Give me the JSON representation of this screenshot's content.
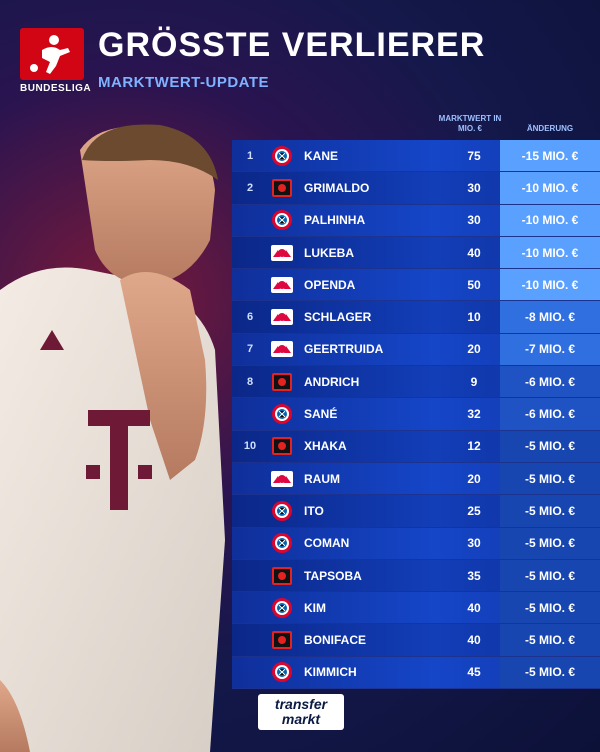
{
  "header": {
    "league_logo_text": "BUNDESLIGA",
    "title": "GRÖSSTE VERLIERER",
    "subtitle": "MARKTWERT-UPDATE"
  },
  "columns": {
    "marktwert": "MARKTWERT IN MIO. €",
    "aenderung": "ÄNDERUNG"
  },
  "rows": [
    {
      "rank": "1",
      "club": "bayern",
      "name": "KANE",
      "mw": "75",
      "chg": "-15 MIO. €"
    },
    {
      "rank": "2",
      "club": "leverkusen",
      "name": "GRIMALDO",
      "mw": "30",
      "chg": "-10 MIO. €"
    },
    {
      "rank": "",
      "club": "bayern",
      "name": "PALHINHA",
      "mw": "30",
      "chg": "-10 MIO. €"
    },
    {
      "rank": "",
      "club": "leipzig",
      "name": "LUKEBA",
      "mw": "40",
      "chg": "-10 MIO. €"
    },
    {
      "rank": "",
      "club": "leipzig",
      "name": "OPENDA",
      "mw": "50",
      "chg": "-10 MIO. €"
    },
    {
      "rank": "6",
      "club": "leipzig",
      "name": "SCHLAGER",
      "mw": "10",
      "chg": "-8 MIO. €"
    },
    {
      "rank": "7",
      "club": "leipzig",
      "name": "GEERTRUIDA",
      "mw": "20",
      "chg": "-7 MIO. €"
    },
    {
      "rank": "8",
      "club": "leverkusen",
      "name": "ANDRICH",
      "mw": "9",
      "chg": "-6 MIO. €"
    },
    {
      "rank": "",
      "club": "bayern",
      "name": "SANÉ",
      "mw": "32",
      "chg": "-6 MIO. €"
    },
    {
      "rank": "10",
      "club": "leverkusen",
      "name": "XHAKA",
      "mw": "12",
      "chg": "-5 MIO. €"
    },
    {
      "rank": "",
      "club": "leipzig",
      "name": "RAUM",
      "mw": "20",
      "chg": "-5 MIO. €"
    },
    {
      "rank": "",
      "club": "bayern",
      "name": "ITO",
      "mw": "25",
      "chg": "-5 MIO. €"
    },
    {
      "rank": "",
      "club": "bayern",
      "name": "COMAN",
      "mw": "30",
      "chg": "-5 MIO. €"
    },
    {
      "rank": "",
      "club": "leverkusen",
      "name": "TAPSOBA",
      "mw": "35",
      "chg": "-5 MIO. €"
    },
    {
      "rank": "",
      "club": "bayern",
      "name": "KIM",
      "mw": "40",
      "chg": "-5 MIO. €"
    },
    {
      "rank": "",
      "club": "leverkusen",
      "name": "BONIFACE",
      "mw": "40",
      "chg": "-5 MIO. €"
    },
    {
      "rank": "",
      "club": "bayern",
      "name": "KIMMICH",
      "mw": "45",
      "chg": "-5 MIO. €"
    }
  ],
  "footer": {
    "logo_line1": "transfer",
    "logo_line2": "markt"
  },
  "colors": {
    "accent": "#7fb2ff",
    "bundesliga_red": "#d20515"
  }
}
